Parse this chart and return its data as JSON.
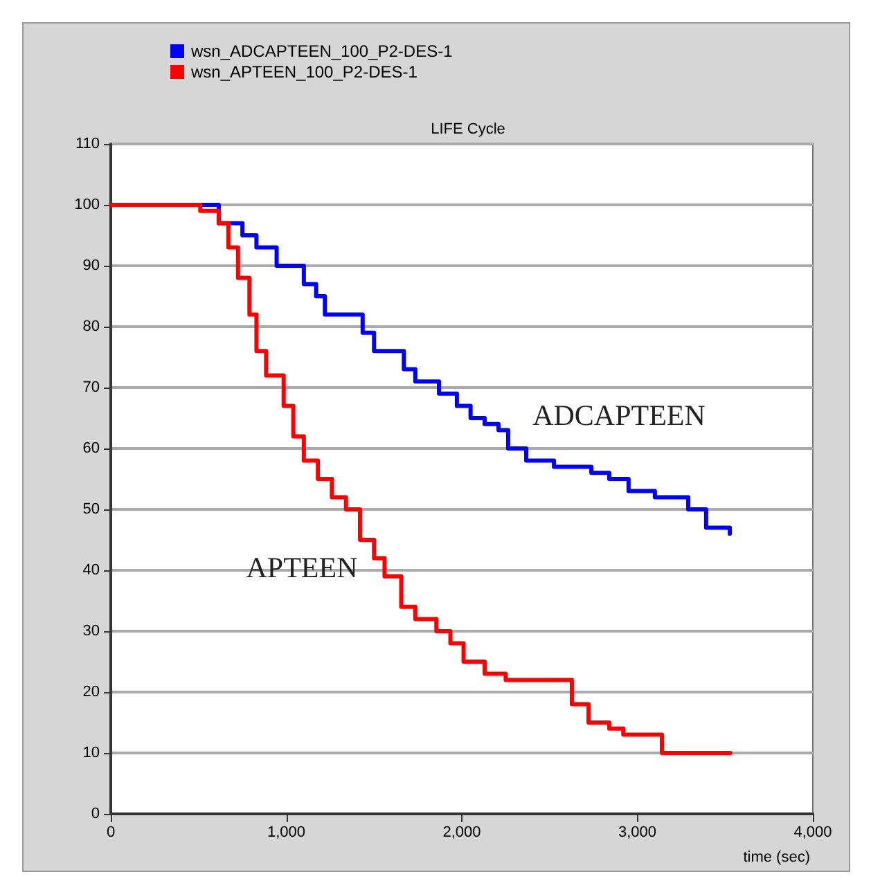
{
  "chart_data": {
    "type": "step",
    "title": "LIFE Cycle",
    "xlabel": "time (sec)",
    "annotations": [
      "ADCAPTEEN",
      "APTEEN"
    ],
    "series": [
      {
        "name": "wsn_ADCAPTEEN_100_P2-DES-1",
        "color": "#0000ff",
        "x": [
          0,
          473,
          615,
          750,
          830,
          945,
          1040,
          1100,
          1170,
          1220,
          1380,
          1435,
          1500,
          1580,
          1670,
          1735,
          1870,
          1972,
          2050,
          2130,
          2209,
          2264,
          2367,
          2525,
          2738,
          2840,
          2950,
          3100,
          3290,
          3392,
          3527
        ],
        "values": [
          100,
          100,
          97,
          95,
          93,
          90,
          90,
          87,
          85,
          82,
          82,
          79,
          76,
          76,
          73,
          71,
          69,
          67,
          65,
          64,
          63,
          60,
          58,
          57,
          56,
          55,
          53,
          52,
          50,
          47,
          46
        ]
      },
      {
        "name": "wsn_APTEEN_100_P2-DES-1",
        "color": "#ff0000",
        "x": [
          0,
          430,
          510,
          615,
          670,
          725,
          790,
          830,
          885,
          945,
          985,
          1040,
          1100,
          1180,
          1260,
          1340,
          1420,
          1500,
          1560,
          1655,
          1735,
          1855,
          1935,
          2010,
          2130,
          2250,
          2525,
          2627,
          2722,
          2840,
          2920,
          3075,
          3140,
          3530
        ],
        "values": [
          100,
          100,
          99,
          97,
          93,
          88,
          82,
          76,
          72,
          72,
          67,
          62,
          58,
          55,
          52,
          50,
          45,
          42,
          39,
          34,
          32,
          30,
          28,
          25,
          23,
          22,
          22,
          18,
          15,
          14,
          13,
          13,
          10,
          10
        ]
      }
    ],
    "xlim": [
      0,
      4000
    ],
    "xticks": [
      0,
      {
        "value": 1000,
        "label": "1,000"
      },
      {
        "value": 2000,
        "label": "2,000"
      },
      {
        "value": 3000,
        "label": "3,000"
      },
      {
        "value": 4000,
        "label": "4,000"
      }
    ],
    "ylim": [
      0,
      110
    ],
    "yticks": [
      0,
      10,
      20,
      30,
      40,
      50,
      60,
      70,
      80,
      90,
      100,
      110
    ],
    "grid": "y",
    "legend": "top left",
    "marker": "none",
    "line_style": "solid"
  }
}
